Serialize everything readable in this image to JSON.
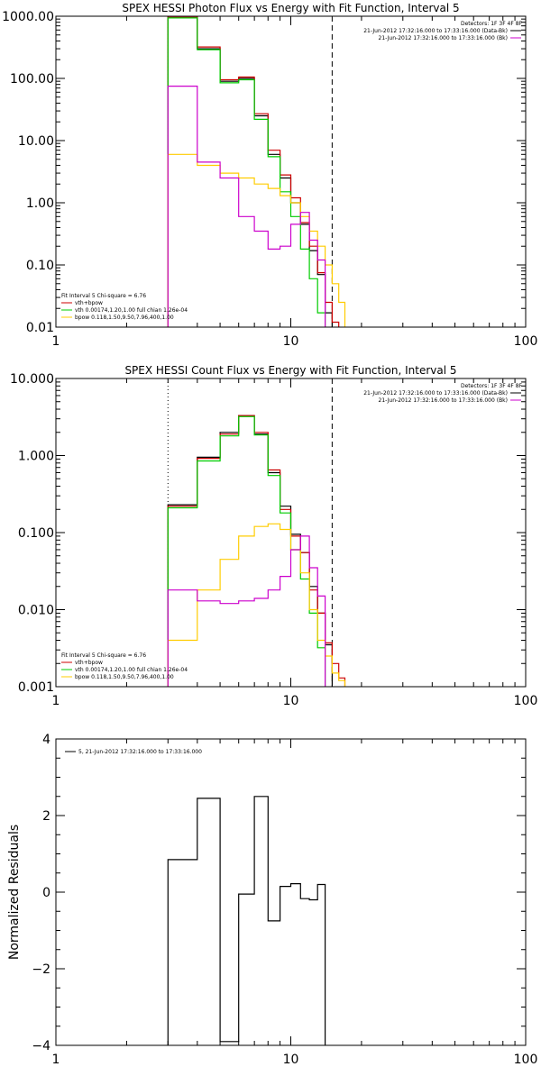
{
  "colors": {
    "frame": "#000000",
    "data": "#000000",
    "total": "#cc0000",
    "vth": "#00cc00",
    "bpow": "#ffcc00",
    "bk": "#cc00cc"
  },
  "chart_data": [
    {
      "type": "line",
      "title": "SPEX HESSI Photon Flux vs Energy with Fit Function, Interval 5",
      "x_log": true,
      "y_log": true,
      "xlim": [
        1,
        100
      ],
      "ylim": [
        0.01,
        1000
      ],
      "x_tick_labels": [
        "1",
        "10",
        "100"
      ],
      "y_tick_labels": [
        "1000.00",
        "100.00",
        "10.00",
        "1.00",
        "0.10",
        "0.01"
      ],
      "detectors": "Detectors: 1F 3F 4F 8F",
      "legend_right": [
        {
          "text": "21-Jun-2012 17:32:16.000 to 17:33:16.000 (Data-Bk)",
          "color": "#000000"
        },
        {
          "text": "21-Jun-2012 17:32:16.000 to 17:33:16.000 (Bk)",
          "color": "#cc00cc"
        }
      ],
      "legend_left_title": "Fit Interval 5   Chi-square = 6.76",
      "legend_left": [
        {
          "text": "vth+bpow",
          "color": "#cc0000"
        },
        {
          "text": "vth 0.00174,1.20,1.00  full chian 1.26e-04",
          "color": "#00cc00"
        },
        {
          "text": "bpow 0.118,1.50,9.50,7.96,400,1.00",
          "color": "#ffcc00"
        }
      ],
      "vlines": [
        {
          "x": 3,
          "style": "dotted"
        },
        {
          "x": 15,
          "style": "dashed"
        }
      ],
      "bin_edges": [
        3,
        4,
        5,
        6,
        7,
        8,
        9,
        10,
        11,
        12,
        13,
        14,
        15,
        16,
        17,
        18
      ],
      "series": [
        {
          "name": "Data-Bk",
          "color": "#000000",
          "values": [
            950,
            300,
            90,
            100,
            25,
            6,
            2.5,
            1,
            0.45,
            0.17,
            0.07,
            0.017,
            null,
            null,
            null
          ]
        },
        {
          "name": "vth+bpow",
          "color": "#cc0000",
          "values": [
            960,
            320,
            95,
            105,
            27,
            7,
            2.8,
            1.2,
            0.48,
            0.2,
            0.075,
            0.025,
            0.012,
            null,
            null
          ]
        },
        {
          "name": "vth",
          "color": "#00cc00",
          "values": [
            940,
            290,
            85,
            95,
            22,
            5.5,
            1.5,
            0.6,
            0.18,
            0.06,
            0.017,
            null,
            null,
            null,
            null
          ]
        },
        {
          "name": "bpow",
          "color": "#ffcc00",
          "values": [
            6,
            4,
            3,
            2.5,
            2,
            1.7,
            1.3,
            1,
            0.6,
            0.35,
            0.2,
            0.1,
            0.05,
            0.025,
            null
          ]
        },
        {
          "name": "Bk",
          "color": "#cc00cc",
          "values": [
            75,
            4.5,
            2.5,
            0.6,
            0.35,
            0.18,
            0.2,
            0.45,
            0.7,
            0.25,
            0.12,
            null,
            null,
            null,
            null
          ]
        }
      ]
    },
    {
      "type": "line",
      "title": "SPEX HESSI Count Flux vs Energy with Fit Function, Interval 5",
      "x_log": true,
      "y_log": true,
      "xlim": [
        1,
        100
      ],
      "ylim": [
        0.001,
        10
      ],
      "x_tick_labels": [
        "1",
        "10",
        "100"
      ],
      "y_tick_labels": [
        "10.000",
        "1.000",
        "0.100",
        "0.010",
        "0.001"
      ],
      "detectors": "Detectors: 1F 3F 4F 8F",
      "legend_right": [
        {
          "text": "21-Jun-2012 17:32:16.000 to 17:33:16.000 (Data-Bk)",
          "color": "#000000"
        },
        {
          "text": "21-Jun-2012 17:32:16.000 to 17:33:16.000 (Bk)",
          "color": "#cc00cc"
        }
      ],
      "legend_left_title": "Fit Interval 5   Chi-square = 6.76",
      "legend_left": [
        {
          "text": "vth+bpow",
          "color": "#cc0000"
        },
        {
          "text": "vth 0.00174,1.20,1.00  full chian 1.26e-04",
          "color": "#00cc00"
        },
        {
          "text": "bpow 0.118,1.50,9.50,7.96,400,1.00",
          "color": "#ffcc00"
        }
      ],
      "vlines": [
        {
          "x": 3,
          "style": "dotted"
        },
        {
          "x": 15,
          "style": "dashed"
        }
      ],
      "bin_edges": [
        3,
        4,
        5,
        6,
        7,
        8,
        9,
        10,
        11,
        12,
        13,
        14,
        15,
        16,
        17,
        18
      ],
      "series": [
        {
          "name": "Data-Bk",
          "color": "#000000",
          "values": [
            0.23,
            0.95,
            2.0,
            3.3,
            1.9,
            0.6,
            0.22,
            0.095,
            0.055,
            0.02,
            0.009,
            0.0035,
            null,
            null,
            null
          ]
        },
        {
          "name": "vth+bpow",
          "color": "#cc0000",
          "values": [
            0.22,
            0.92,
            1.9,
            3.3,
            2.0,
            0.65,
            0.2,
            0.09,
            0.055,
            0.018,
            0.009,
            0.0037,
            0.002,
            0.0013,
            null
          ]
        },
        {
          "name": "vth",
          "color": "#00cc00",
          "values": [
            0.21,
            0.85,
            1.8,
            3.2,
            1.85,
            0.55,
            0.18,
            0.06,
            0.025,
            0.009,
            0.0032,
            null,
            null,
            null,
            null
          ]
        },
        {
          "name": "bpow",
          "color": "#ffcc00",
          "values": [
            0.004,
            0.018,
            0.045,
            0.09,
            0.12,
            0.13,
            0.11,
            0.06,
            0.03,
            0.01,
            0.004,
            0.0025,
            0.0015,
            0.0012,
            null
          ]
        },
        {
          "name": "Bk",
          "color": "#cc00cc",
          "values": [
            0.018,
            0.013,
            0.012,
            0.013,
            0.014,
            0.018,
            0.027,
            0.06,
            0.09,
            0.035,
            0.015,
            null,
            null,
            null,
            null
          ]
        }
      ]
    },
    {
      "type": "line",
      "title": "",
      "x_log": true,
      "y_log": false,
      "xlim": [
        1,
        100
      ],
      "ylim": [
        -4,
        4
      ],
      "x_tick_labels": [
        "1",
        "10",
        "100"
      ],
      "y_tick_labels": [
        "4",
        "2",
        "0",
        "−2",
        "−4"
      ],
      "ylabel": "Normalized Residuals",
      "legend_left_top": [
        {
          "text": "5, 21-Jun-2012 17:32:16.000 to 17:33:16.000",
          "color": "#000000"
        }
      ],
      "bin_edges": [
        3,
        4,
        5,
        6,
        7,
        8,
        9,
        10,
        11,
        12,
        13,
        14,
        15
      ],
      "series": [
        {
          "name": "",
          "color": "#000000",
          "values": [
            0.85,
            2.45,
            -3.9,
            -0.05,
            2.5,
            -0.75,
            0.15,
            0.22,
            -0.17,
            -0.2,
            0.2,
            null
          ]
        }
      ]
    }
  ]
}
